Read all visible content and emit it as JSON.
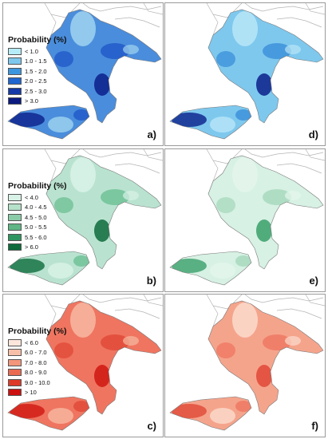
{
  "panels": [
    {
      "id": "a",
      "label": "a)",
      "base": "#4a8ddc",
      "shade": "#1f57c8",
      "hot": "#0a1f8a",
      "light": "#9fd4f0"
    },
    {
      "id": "d",
      "label": "d)",
      "base": "#7ec8ee",
      "shade": "#3a8fd8",
      "hot": "#0a1f8a",
      "light": "#b9e6f7"
    },
    {
      "id": "b",
      "label": "b)",
      "base": "#b9e3d0",
      "shade": "#6cbf93",
      "hot": "#0e6b3c",
      "light": "#d9f2e7"
    },
    {
      "id": "e",
      "label": "e)",
      "base": "#d7f1e4",
      "shade": "#a5d8bb",
      "hot": "#3aa06a",
      "light": "#e5f6ec"
    },
    {
      "id": "c",
      "label": "c)",
      "base": "#ef7560",
      "shade": "#e04836",
      "hot": "#cf1812",
      "light": "#f7b9a2"
    },
    {
      "id": "f",
      "label": "f)",
      "base": "#f5a48c",
      "shade": "#ef7560",
      "hot": "#e04836",
      "light": "#fbdccd"
    }
  ],
  "legends": {
    "blue": {
      "title": "Probability (%)",
      "items": [
        {
          "label": "< 1.0",
          "color": "#b6ecf7"
        },
        {
          "label": "1.0 - 1.5",
          "color": "#7ec8ee"
        },
        {
          "label": "1.5 - 2.0",
          "color": "#3b96e0"
        },
        {
          "label": "2.0 - 2.5",
          "color": "#1f66d0"
        },
        {
          "label": "2.5 - 3.0",
          "color": "#133aa8"
        },
        {
          "label": "> 3.0",
          "color": "#0a1a80"
        }
      ]
    },
    "green": {
      "title": "Probability (%)",
      "items": [
        {
          "label": "< 4.0",
          "color": "#d9f2e7"
        },
        {
          "label": "4.0 - 4.5",
          "color": "#b5e0c9"
        },
        {
          "label": "4.5 - 5.0",
          "color": "#8acca8"
        },
        {
          "label": "5.0 - 5.5",
          "color": "#5fb585"
        },
        {
          "label": "5.5 - 6.0",
          "color": "#2e9660"
        },
        {
          "label": "> 6.0",
          "color": "#0e6b3c"
        }
      ]
    },
    "red": {
      "title": "Probability (%)",
      "items": [
        {
          "label": "< 6.0",
          "color": "#fce6dc"
        },
        {
          "label": "6.0 - 7.0",
          "color": "#f8bfa8"
        },
        {
          "label": "7.0 - 8.0",
          "color": "#f3967b"
        },
        {
          "label": "8.0 - 9.0",
          "color": "#ea6a52"
        },
        {
          "label": "9.0 - 10.0",
          "color": "#dd3a2a"
        },
        {
          "label": "> 10",
          "color": "#cc1010"
        }
      ]
    }
  }
}
